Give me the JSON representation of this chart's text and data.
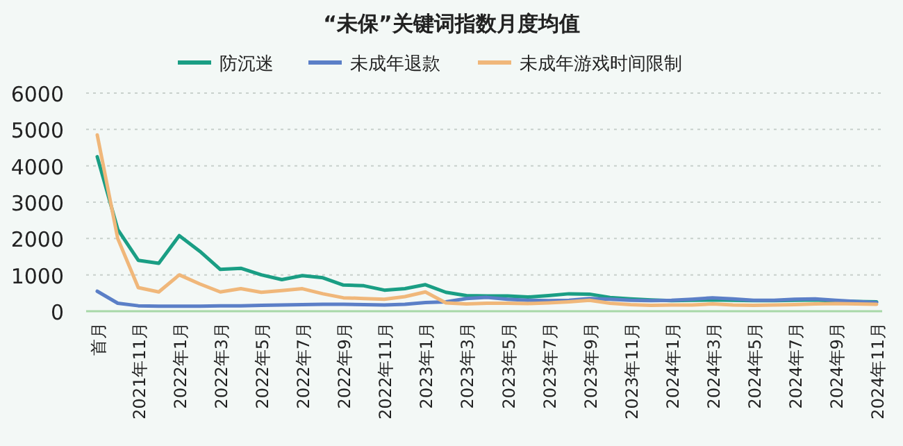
{
  "chart_data": {
    "type": "line",
    "title": "“未保”关键词指数月度均值",
    "categories": [
      "首月",
      null,
      "2021年11月",
      null,
      "2022年1月",
      null,
      "2022年3月",
      null,
      "2022年5月",
      null,
      "2022年7月",
      null,
      "2022年9月",
      null,
      "2022年11月",
      null,
      "2023年1月",
      null,
      "2023年3月",
      null,
      "2023年5月",
      null,
      "2023年7月",
      null,
      "2023年9月",
      null,
      "2023年11月",
      null,
      "2024年1月",
      null,
      "2024年3月",
      null,
      "2024年5月",
      null,
      "2024年7月",
      null,
      "2024年9月",
      null,
      "2024年11月"
    ],
    "series": [
      {
        "name": "防沉迷",
        "color": "#1a9e84",
        "values": [
          4250,
          2250,
          1400,
          1320,
          2080,
          1650,
          1150,
          1180,
          1000,
          870,
          980,
          920,
          720,
          700,
          580,
          620,
          730,
          520,
          430,
          420,
          420,
          390,
          430,
          480,
          470,
          380,
          340,
          310,
          290,
          300,
          310,
          300,
          290,
          290,
          300,
          310,
          280,
          270,
          260
        ]
      },
      {
        "name": "未成年退款",
        "color": "#5b7fc7",
        "values": [
          550,
          220,
          150,
          140,
          140,
          140,
          150,
          150,
          160,
          170,
          180,
          190,
          190,
          180,
          170,
          190,
          240,
          260,
          350,
          380,
          330,
          300,
          290,
          300,
          350,
          330,
          300,
          290,
          300,
          330,
          370,
          340,
          300,
          300,
          330,
          340,
          300,
          270,
          240
        ]
      },
      {
        "name": "未成年游戏时间限制",
        "color": "#f0b77a",
        "values": [
          4850,
          2000,
          650,
          530,
          1000,
          750,
          530,
          620,
          520,
          570,
          620,
          480,
          370,
          350,
          330,
          400,
          530,
          230,
          200,
          220,
          220,
          210,
          230,
          260,
          300,
          220,
          180,
          160,
          170,
          170,
          200,
          170,
          160,
          170,
          180,
          200,
          210,
          200,
          190
        ]
      }
    ],
    "ylim": [
      0,
      6000
    ],
    "yticks": [
      0,
      1000,
      2000,
      3000,
      4000,
      5000,
      6000
    ],
    "grid": "y",
    "legend": "top",
    "marker": "none",
    "line_style": "solid"
  }
}
